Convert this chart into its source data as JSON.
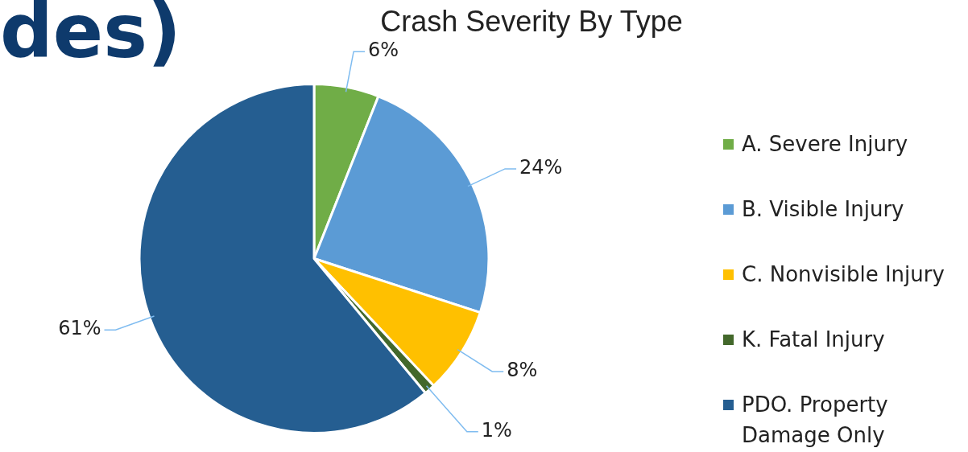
{
  "chart_data": {
    "type": "pie",
    "title": "Crash Severity By Type",
    "categories": [
      "A. Severe Injury",
      "B. Visible Injury",
      "C. Nonvisible Injury",
      "K. Fatal Injury",
      "PDO. Property Damage Only"
    ],
    "values": [
      6,
      24,
      8,
      1,
      61
    ],
    "colors": [
      "#70ad47",
      "#5b9bd5",
      "#ffc000",
      "#43682b",
      "#255e91"
    ],
    "value_labels": [
      "6%",
      "24%",
      "8%",
      "1%",
      "61%"
    ],
    "legend": "right",
    "annotations": [
      "des)"
    ]
  }
}
